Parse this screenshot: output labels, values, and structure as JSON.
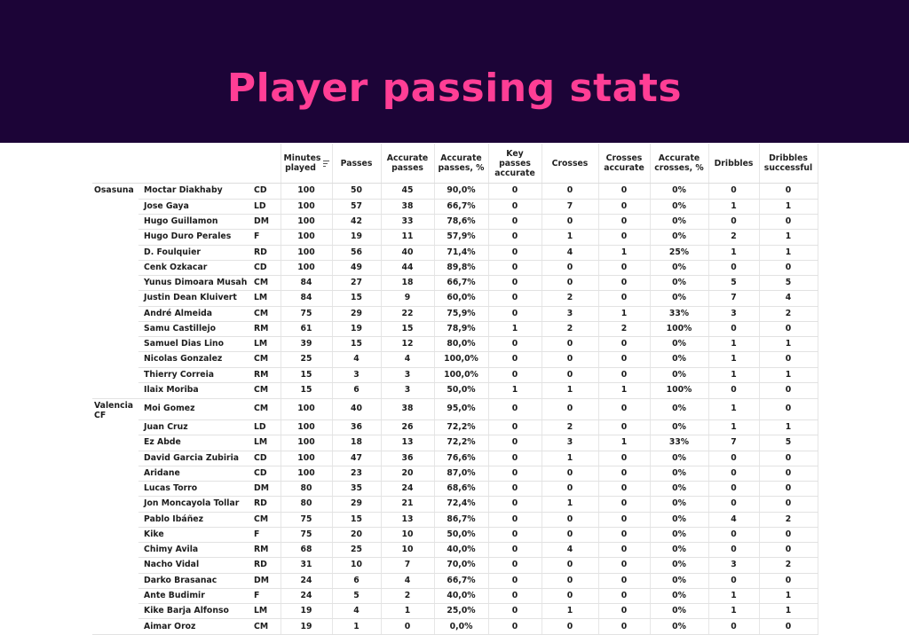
{
  "title": "Player passing stats",
  "columns": {
    "minutes": "Minutes played",
    "passes": "Passes",
    "accurate_passes": "Accurate passes",
    "accurate_passes_pct": "Accurate passes, %",
    "key_passes": "Key passes accurate",
    "crosses": "Crosses",
    "crosses_accurate": "Crosses accurate",
    "accurate_crosses_pct": "Accurate crosses, %",
    "dribbles": "Dribbles",
    "dribbles_successful": "Dribbles successful"
  },
  "sort_icon": "sort-filter-icon",
  "teams": [
    {
      "name": "Osasuna",
      "players": [
        [
          "Moctar Diakhaby",
          "CD",
          "100",
          "50",
          "45",
          "90,0%",
          "0",
          "0",
          "0",
          "0%",
          "0",
          "0"
        ],
        [
          "Jose Gaya",
          "LD",
          "100",
          "57",
          "38",
          "66,7%",
          "0",
          "7",
          "0",
          "0%",
          "1",
          "1"
        ],
        [
          "Hugo Guillamon",
          "DM",
          "100",
          "42",
          "33",
          "78,6%",
          "0",
          "0",
          "0",
          "0%",
          "0",
          "0"
        ],
        [
          "Hugo Duro Perales",
          "F",
          "100",
          "19",
          "11",
          "57,9%",
          "0",
          "1",
          "0",
          "0%",
          "2",
          "1"
        ],
        [
          "D. Foulquier",
          "RD",
          "100",
          "56",
          "40",
          "71,4%",
          "0",
          "4",
          "1",
          "25%",
          "1",
          "1"
        ],
        [
          "Cenk Ozkacar",
          "CD",
          "100",
          "49",
          "44",
          "89,8%",
          "0",
          "0",
          "0",
          "0%",
          "0",
          "0"
        ],
        [
          "Yunus Dimoara Musah",
          "CM",
          "84",
          "27",
          "18",
          "66,7%",
          "0",
          "0",
          "0",
          "0%",
          "5",
          "5"
        ],
        [
          "Justin Dean Kluivert",
          "LM",
          "84",
          "15",
          "9",
          "60,0%",
          "0",
          "2",
          "0",
          "0%",
          "7",
          "4"
        ],
        [
          "André Almeida",
          "CM",
          "75",
          "29",
          "22",
          "75,9%",
          "0",
          "3",
          "1",
          "33%",
          "3",
          "2"
        ],
        [
          "Samu Castillejo",
          "RM",
          "61",
          "19",
          "15",
          "78,9%",
          "1",
          "2",
          "2",
          "100%",
          "0",
          "0"
        ],
        [
          "Samuel Dias Lino",
          "LM",
          "39",
          "15",
          "12",
          "80,0%",
          "0",
          "0",
          "0",
          "0%",
          "1",
          "1"
        ],
        [
          "Nicolas Gonzalez",
          "CM",
          "25",
          "4",
          "4",
          "100,0%",
          "0",
          "0",
          "0",
          "0%",
          "1",
          "0"
        ],
        [
          "Thierry Correia",
          "RM",
          "15",
          "3",
          "3",
          "100,0%",
          "0",
          "0",
          "0",
          "0%",
          "1",
          "1"
        ],
        [
          "Ilaix Moriba",
          "CM",
          "15",
          "6",
          "3",
          "50,0%",
          "1",
          "1",
          "1",
          "100%",
          "0",
          "0"
        ]
      ]
    },
    {
      "name": "Valencia CF",
      "players": [
        [
          "Moi Gomez",
          "CM",
          "100",
          "40",
          "38",
          "95,0%",
          "0",
          "0",
          "0",
          "0%",
          "1",
          "0"
        ],
        [
          "Juan Cruz",
          "LD",
          "100",
          "36",
          "26",
          "72,2%",
          "0",
          "2",
          "0",
          "0%",
          "1",
          "1"
        ],
        [
          "Ez Abde",
          "LM",
          "100",
          "18",
          "13",
          "72,2%",
          "0",
          "3",
          "1",
          "33%",
          "7",
          "5"
        ],
        [
          "David Garcia Zubiria",
          "CD",
          "100",
          "47",
          "36",
          "76,6%",
          "0",
          "1",
          "0",
          "0%",
          "0",
          "0"
        ],
        [
          "Aridane",
          "CD",
          "100",
          "23",
          "20",
          "87,0%",
          "0",
          "0",
          "0",
          "0%",
          "0",
          "0"
        ],
        [
          "Lucas Torro",
          "DM",
          "80",
          "35",
          "24",
          "68,6%",
          "0",
          "0",
          "0",
          "0%",
          "0",
          "0"
        ],
        [
          "Jon Moncayola Tollar",
          "RD",
          "80",
          "29",
          "21",
          "72,4%",
          "0",
          "1",
          "0",
          "0%",
          "0",
          "0"
        ],
        [
          "Pablo Ibáñez",
          "CM",
          "75",
          "15",
          "13",
          "86,7%",
          "0",
          "0",
          "0",
          "0%",
          "4",
          "2"
        ],
        [
          "Kike",
          "F",
          "75",
          "20",
          "10",
          "50,0%",
          "0",
          "0",
          "0",
          "0%",
          "0",
          "0"
        ],
        [
          "Chimy Avila",
          "RM",
          "68",
          "25",
          "10",
          "40,0%",
          "0",
          "4",
          "0",
          "0%",
          "0",
          "0"
        ],
        [
          "Nacho Vidal",
          "RD",
          "31",
          "10",
          "7",
          "70,0%",
          "0",
          "0",
          "0",
          "0%",
          "3",
          "2"
        ],
        [
          "Darko Brasanac",
          "DM",
          "24",
          "6",
          "4",
          "66,7%",
          "0",
          "0",
          "0",
          "0%",
          "0",
          "0"
        ],
        [
          "Ante Budimir",
          "F",
          "24",
          "5",
          "2",
          "40,0%",
          "0",
          "0",
          "0",
          "0%",
          "1",
          "1"
        ],
        [
          "Kike Barja Alfonso",
          "LM",
          "19",
          "4",
          "1",
          "25,0%",
          "0",
          "1",
          "0",
          "0%",
          "1",
          "1"
        ],
        [
          "Aimar Oroz",
          "CM",
          "19",
          "1",
          "0",
          "0,0%",
          "0",
          "0",
          "0",
          "0%",
          "0",
          "0"
        ]
      ]
    }
  ]
}
